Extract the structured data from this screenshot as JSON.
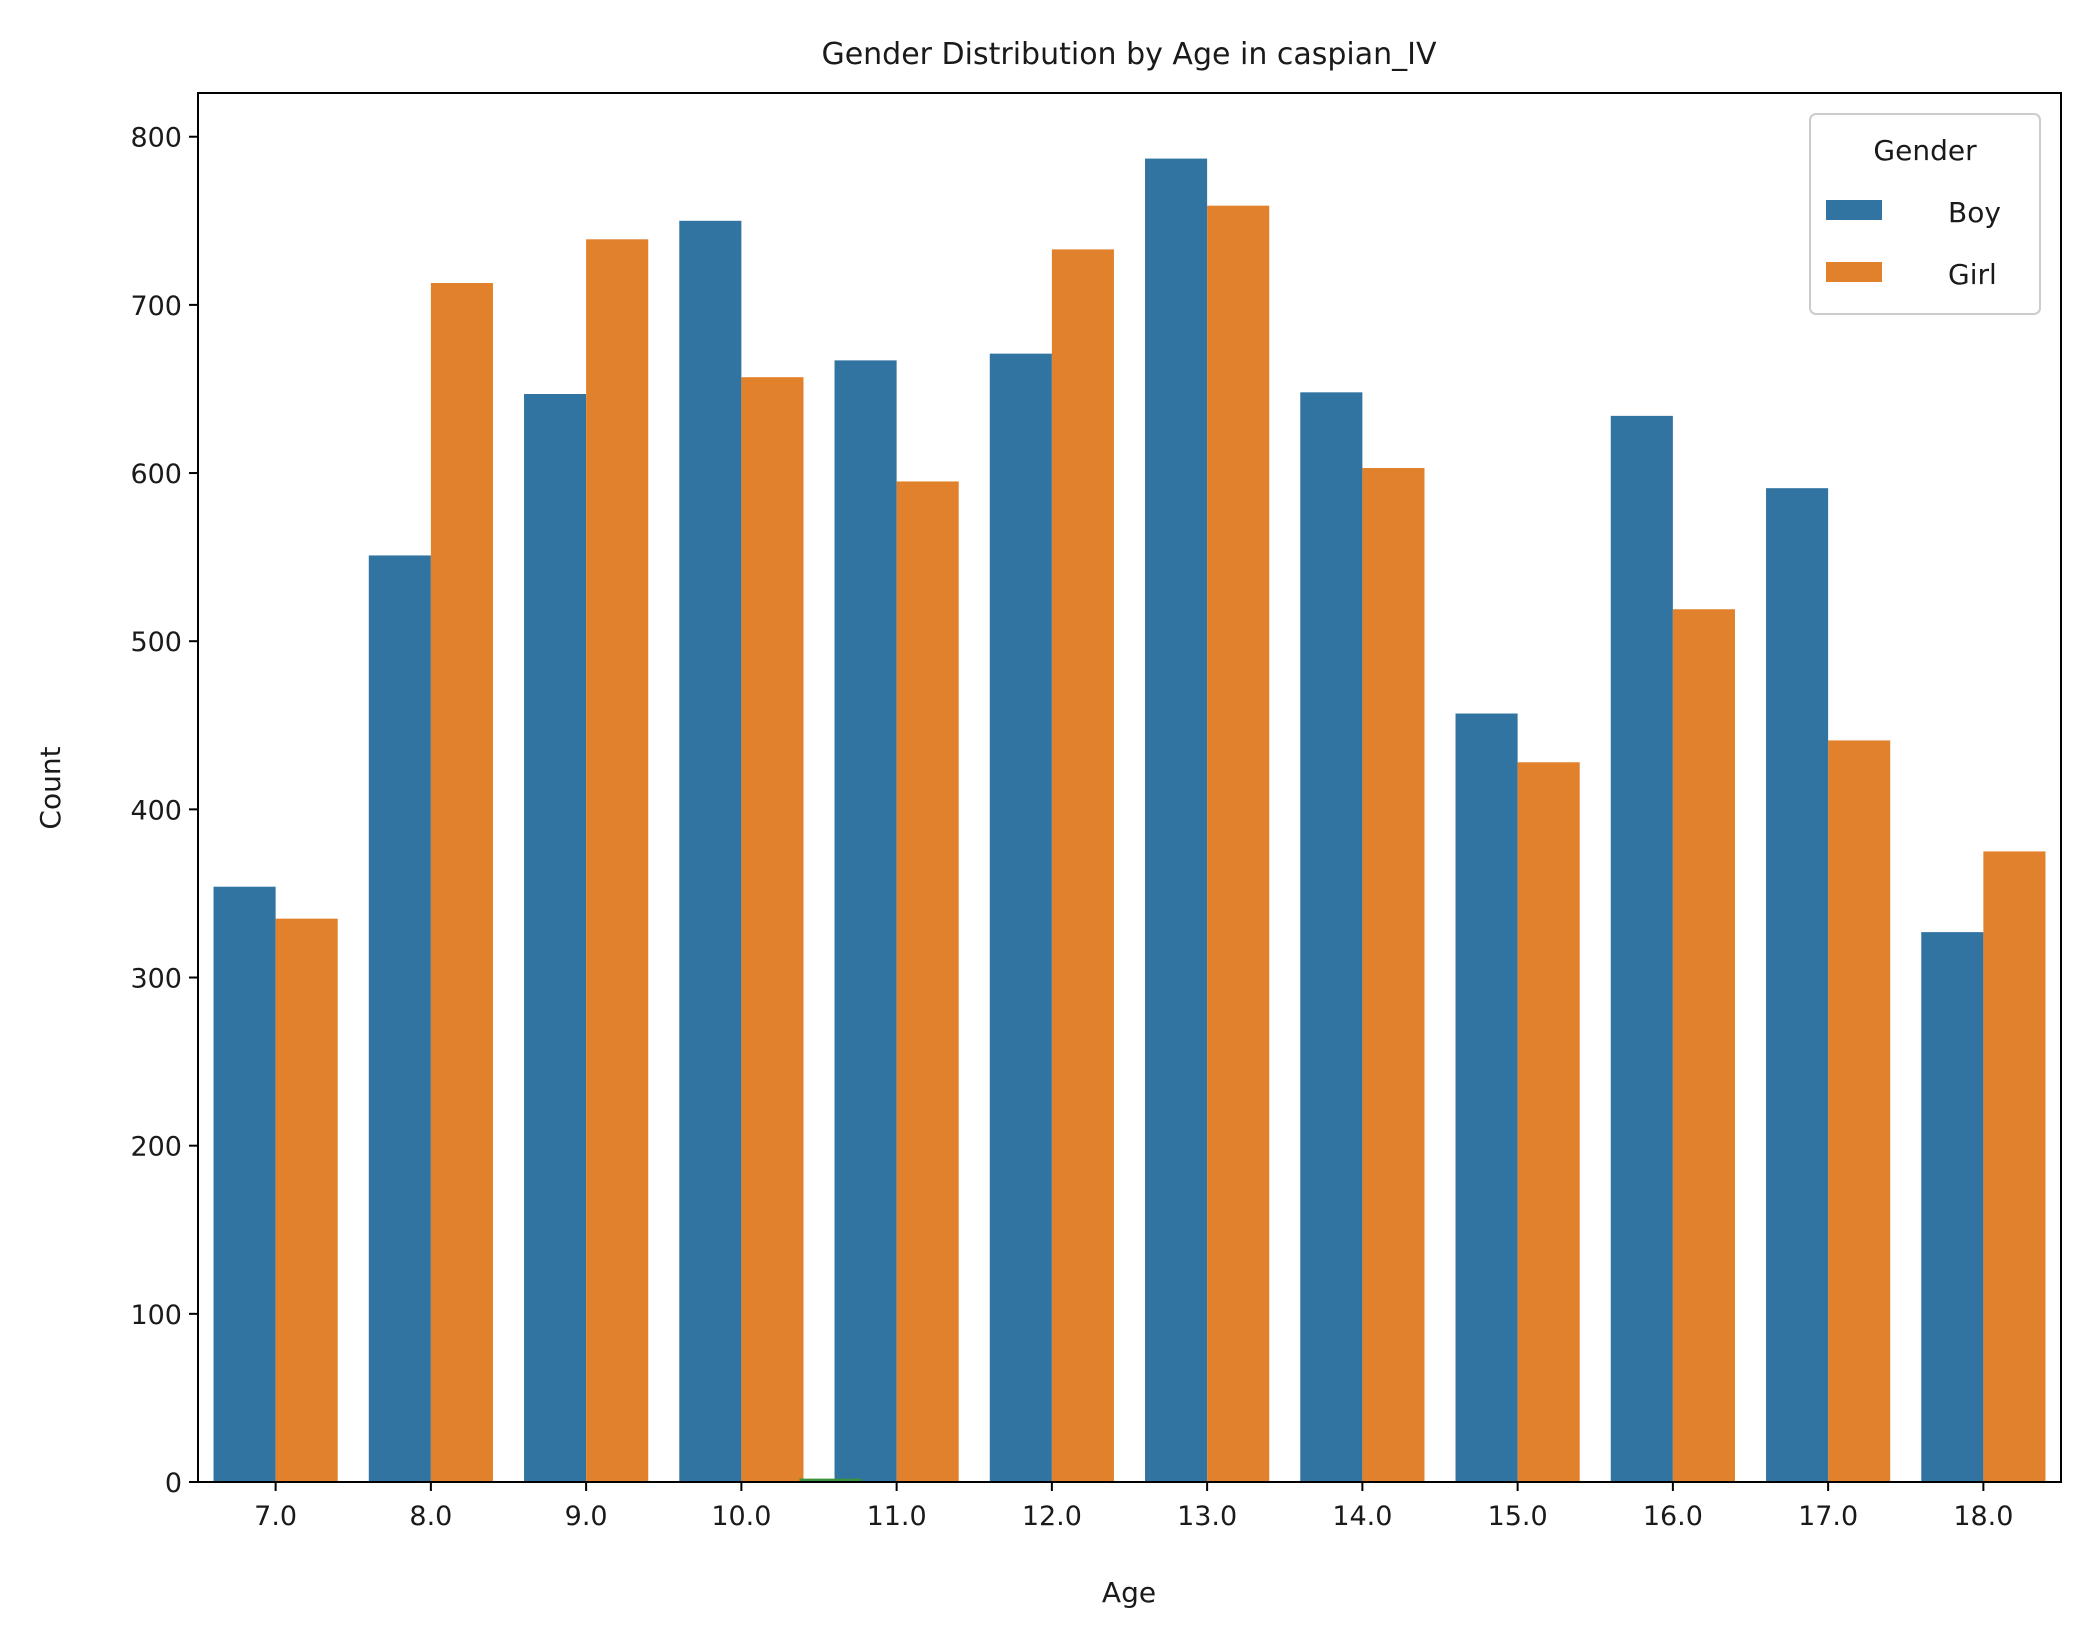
{
  "chart_data": {
    "type": "bar",
    "title": "Gender Distribution by Age in caspian_IV",
    "xlabel": "Age",
    "ylabel": "Count",
    "ylim": [
      0,
      826
    ],
    "yticks": [
      0,
      100,
      200,
      300,
      400,
      500,
      600,
      700,
      800
    ],
    "categories": [
      "7.0",
      "8.0",
      "9.0",
      "10.0",
      "11.0",
      "12.0",
      "13.0",
      "14.0",
      "15.0",
      "16.0",
      "17.0",
      "18.0"
    ],
    "series": [
      {
        "name": "Boy",
        "color": "#3274a1",
        "values": [
          354,
          551,
          647,
          750,
          667,
          671,
          787,
          648,
          457,
          634,
          591,
          327
        ]
      },
      {
        "name": "Girl",
        "color": "#e1812c",
        "values": [
          335,
          713,
          739,
          657,
          595,
          733,
          759,
          603,
          428,
          519,
          441,
          375
        ]
      }
    ],
    "minor_series": {
      "color": "#3a923a",
      "category": "10.0",
      "value": 2
    },
    "legend": {
      "title": "Gender",
      "position": "top-right"
    },
    "grid": false
  }
}
